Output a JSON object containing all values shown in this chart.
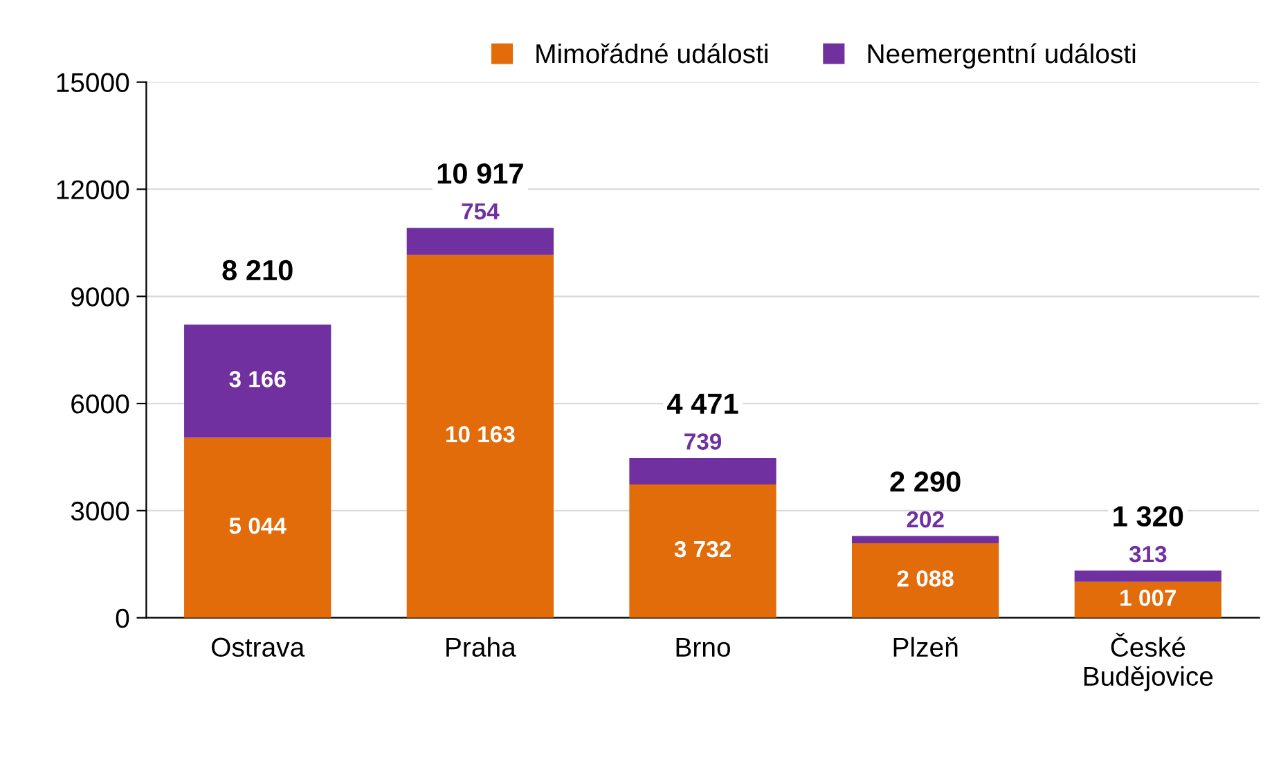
{
  "chart_data": {
    "type": "bar",
    "stacked": true,
    "categories": [
      "Ostrava",
      "Praha",
      "Brno",
      "Plzeň",
      "České\nBudějovice"
    ],
    "series": [
      {
        "name": "Mimořádné události",
        "color": "#e26b0a",
        "values": [
          5044,
          10163,
          3732,
          2088,
          1007
        ],
        "value_labels": [
          "5 044",
          "10 163",
          "3 732",
          "2 088",
          "1 007"
        ]
      },
      {
        "name": "Neemergentní události",
        "color": "#7030a0",
        "values": [
          3166,
          754,
          739,
          202,
          313
        ],
        "value_labels": [
          "3 166",
          "754",
          "739",
          "202",
          "313"
        ]
      }
    ],
    "totals": [
      "8 210",
      "10 917",
      "4 471",
      "2 290",
      "1 320"
    ],
    "ylim": [
      0,
      15000
    ],
    "yticks": [
      0,
      3000,
      6000,
      9000,
      12000,
      15000
    ],
    "grid": "y",
    "legend": "top"
  }
}
